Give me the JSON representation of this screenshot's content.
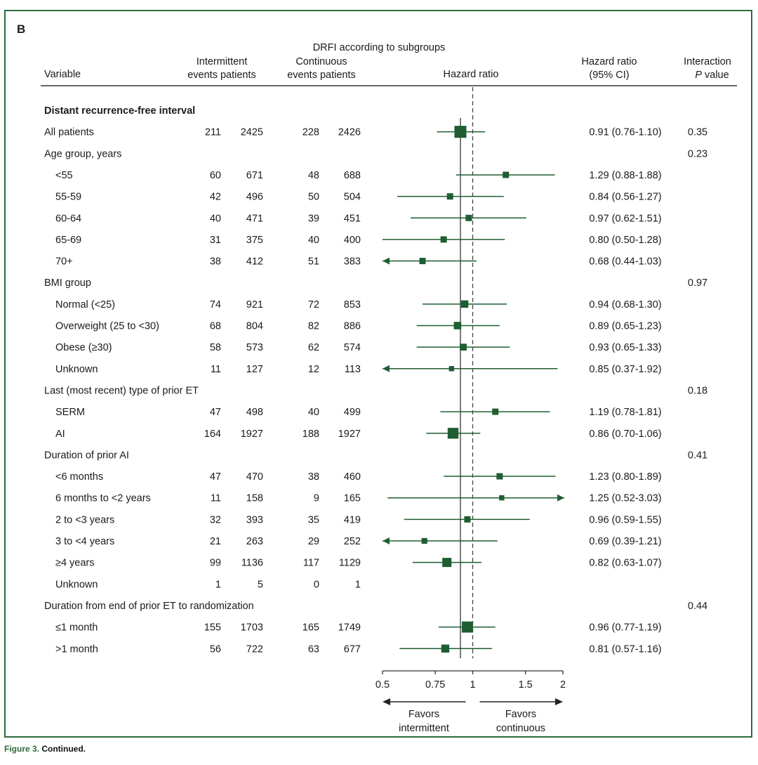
{
  "panel_label": "B",
  "caption": {
    "figure": "Figure 3.",
    "text": "Continued."
  },
  "colors": {
    "marker": "#1f5d32",
    "frame": "#2e6b3a",
    "text": "#1a1a1a"
  },
  "chart_data": {
    "type": "forest",
    "title": "DRFI according to subgroups",
    "columns": {
      "variable": "Variable",
      "intermittent": [
        "Intermittent",
        "events patients"
      ],
      "continuous": [
        "Continuous",
        "events patients"
      ],
      "hr_axis": "Hazard ratio",
      "hr_ci": [
        "Hazard ratio",
        "(95% CI)"
      ],
      "interaction": [
        "Interaction",
        "P value"
      ]
    },
    "axis": {
      "scale": "log",
      "min": 0.5,
      "max": 2,
      "ticks": [
        0.5,
        0.75,
        1,
        1.5,
        2
      ],
      "tick_labels": [
        "0.5",
        "0.75",
        "1",
        "1.5",
        "2"
      ],
      "reference": 1,
      "overall": 0.91,
      "left_label": [
        "Favors",
        "intermittent"
      ],
      "right_label": [
        "Favors",
        "continuous"
      ]
    },
    "rows": [
      {
        "label": "Distant recurrence-free interval",
        "kind": "title"
      },
      {
        "label": "All patients",
        "kind": "data",
        "ie": "211",
        "ip": "2425",
        "ce": "228",
        "cp": "2426",
        "hr": 0.91,
        "lo": 0.76,
        "hi": 1.1,
        "size": 3,
        "ci_text": "0.91 (0.76-1.10)",
        "p": "0.35"
      },
      {
        "label": "Age group, years",
        "kind": "group",
        "p": "0.23"
      },
      {
        "label": "<55",
        "kind": "sub",
        "ie": "60",
        "ip": "671",
        "ce": "48",
        "cp": "688",
        "hr": 1.29,
        "lo": 0.88,
        "hi": 1.88,
        "size": 1,
        "ci_text": "1.29 (0.88-1.88)"
      },
      {
        "label": "55-59",
        "kind": "sub",
        "ie": "42",
        "ip": "496",
        "ce": "50",
        "cp": "504",
        "hr": 0.84,
        "lo": 0.56,
        "hi": 1.27,
        "size": 1,
        "ci_text": "0.84 (0.56-1.27)"
      },
      {
        "label": "60-64",
        "kind": "sub",
        "ie": "40",
        "ip": "471",
        "ce": "39",
        "cp": "451",
        "hr": 0.97,
        "lo": 0.62,
        "hi": 1.51,
        "size": 1,
        "ci_text": "0.97 (0.62-1.51)"
      },
      {
        "label": "65-69",
        "kind": "sub",
        "ie": "31",
        "ip": "375",
        "ce": "40",
        "cp": "400",
        "hr": 0.8,
        "lo": 0.5,
        "hi": 1.28,
        "size": 1,
        "ci_text": "0.80 (0.50-1.28)"
      },
      {
        "label": "70+",
        "kind": "sub",
        "ie": "38",
        "ip": "412",
        "ce": "51",
        "cp": "383",
        "hr": 0.68,
        "lo": 0.44,
        "hi": 1.03,
        "size": 1,
        "ci_text": "0.68 (0.44-1.03)"
      },
      {
        "label": "BMI group",
        "kind": "group",
        "p": "0.97"
      },
      {
        "label": "Normal (<25)",
        "kind": "sub",
        "ie": "74",
        "ip": "921",
        "ce": "72",
        "cp": "853",
        "hr": 0.94,
        "lo": 0.68,
        "hi": 1.3,
        "size": 1.4,
        "ci_text": "0.94 (0.68-1.30)"
      },
      {
        "label": "Overweight (25 to <30)",
        "kind": "sub",
        "ie": "68",
        "ip": "804",
        "ce": "82",
        "cp": "886",
        "hr": 0.89,
        "lo": 0.65,
        "hi": 1.23,
        "size": 1.4,
        "ci_text": "0.89 (0.65-1.23)"
      },
      {
        "label": "Obese (≥30)",
        "kind": "sub",
        "ie": "58",
        "ip": "573",
        "ce": "62",
        "cp": "574",
        "hr": 0.93,
        "lo": 0.65,
        "hi": 1.33,
        "size": 1.2,
        "ci_text": "0.93 (0.65-1.33)"
      },
      {
        "label": "Unknown",
        "kind": "sub",
        "ie": "11",
        "ip": "127",
        "ce": "12",
        "cp": "113",
        "hr": 0.85,
        "lo": 0.37,
        "hi": 1.92,
        "size": 0.6,
        "ci_text": "0.85 (0.37-1.92)"
      },
      {
        "label": "Last (most recent) type of prior ET",
        "kind": "group",
        "p": "0.18"
      },
      {
        "label": "SERM",
        "kind": "sub",
        "ie": "47",
        "ip": "498",
        "ce": "40",
        "cp": "499",
        "hr": 1.19,
        "lo": 0.78,
        "hi": 1.81,
        "size": 1,
        "ci_text": "1.19 (0.78-1.81)"
      },
      {
        "label": "AI",
        "kind": "sub",
        "ie": "164",
        "ip": "1927",
        "ce": "188",
        "cp": "1927",
        "hr": 0.86,
        "lo": 0.7,
        "hi": 1.06,
        "size": 2.6,
        "ci_text": "0.86 (0.70-1.06)"
      },
      {
        "label": "Duration of prior AI",
        "kind": "group",
        "p": "0.41"
      },
      {
        "label": "<6 months",
        "kind": "sub",
        "ie": "47",
        "ip": "470",
        "ce": "38",
        "cp": "460",
        "hr": 1.23,
        "lo": 0.8,
        "hi": 1.89,
        "size": 1,
        "ci_text": "1.23 (0.80-1.89)"
      },
      {
        "label": "6 months to <2 years",
        "kind": "sub",
        "ie": "11",
        "ip": "158",
        "ce": "9",
        "cp": "165",
        "hr": 1.25,
        "lo": 0.52,
        "hi": 3.03,
        "size": 0.6,
        "ci_text": "1.25 (0.52-3.03)"
      },
      {
        "label": "2 to <3 years",
        "kind": "sub",
        "ie": "32",
        "ip": "393",
        "ce": "35",
        "cp": "419",
        "hr": 0.96,
        "lo": 0.59,
        "hi": 1.55,
        "size": 1,
        "ci_text": "0.96 (0.59-1.55)"
      },
      {
        "label": "3 to <4 years",
        "kind": "sub",
        "ie": "21",
        "ip": "263",
        "ce": "29",
        "cp": "252",
        "hr": 0.69,
        "lo": 0.39,
        "hi": 1.21,
        "size": 0.8,
        "ci_text": "0.69 (0.39-1.21)"
      },
      {
        "label": "≥4 years",
        "kind": "sub",
        "ie": "99",
        "ip": "1136",
        "ce": "117",
        "cp": "1129",
        "hr": 0.82,
        "lo": 0.63,
        "hi": 1.07,
        "size": 2,
        "ci_text": "0.82 (0.63-1.07)"
      },
      {
        "label": "Unknown",
        "kind": "sub",
        "ie": "1",
        "ip": "5",
        "ce": "0",
        "cp": "1"
      },
      {
        "label": "Duration from end of prior ET to randomization",
        "kind": "group",
        "p": "0.44"
      },
      {
        "label": "≤1 month",
        "kind": "sub",
        "ie": "155",
        "ip": "1703",
        "ce": "165",
        "cp": "1749",
        "hr": 0.96,
        "lo": 0.77,
        "hi": 1.19,
        "size": 2.7,
        "ci_text": "0.96 (0.77-1.19)"
      },
      {
        "label": ">1 month",
        "kind": "sub",
        "ie": "56",
        "ip": "722",
        "ce": "63",
        "cp": "677",
        "hr": 0.81,
        "lo": 0.57,
        "hi": 1.16,
        "size": 1.6,
        "ci_text": "0.81 (0.57-1.16)"
      }
    ]
  }
}
